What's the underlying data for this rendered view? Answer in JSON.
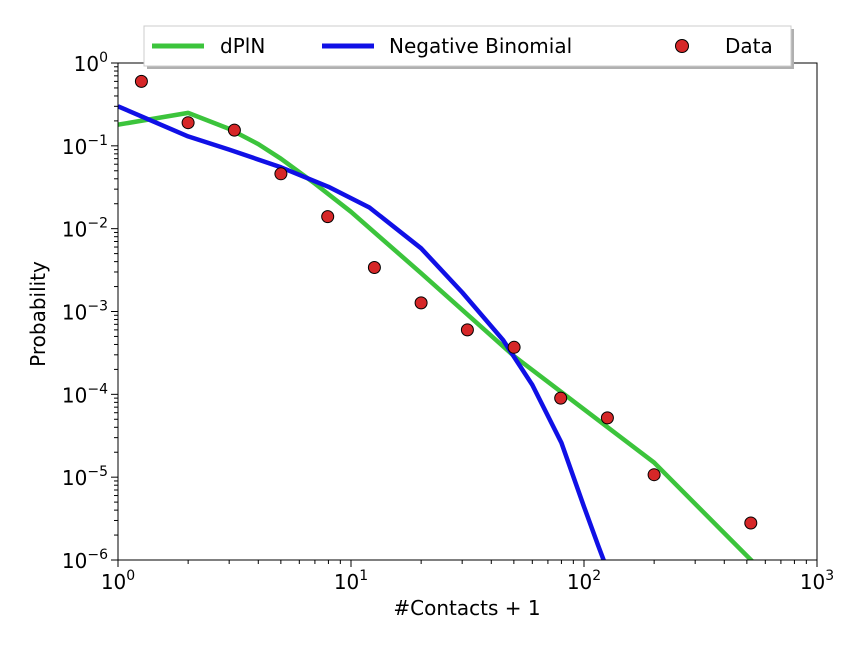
{
  "chart_data": {
    "type": "line",
    "xlabel": "#Contacts + 1",
    "ylabel": "Probability",
    "xscale": "log",
    "yscale": "log",
    "xlim": [
      1,
      1000
    ],
    "ylim": [
      1e-06,
      1
    ],
    "grid": false,
    "legend_position": "top",
    "x_ticks": [
      {
        "base": "10",
        "exp": "0",
        "value": 1
      },
      {
        "base": "10",
        "exp": "1",
        "value": 10
      },
      {
        "base": "10",
        "exp": "2",
        "value": 100
      },
      {
        "base": "10",
        "exp": "3",
        "value": 1000
      }
    ],
    "y_ticks": [
      {
        "base": "10",
        "exp": "0",
        "value": 1
      },
      {
        "base": "10",
        "exp": "−1",
        "value": 0.1
      },
      {
        "base": "10",
        "exp": "−2",
        "value": 0.01
      },
      {
        "base": "10",
        "exp": "−3",
        "value": 0.001
      },
      {
        "base": "10",
        "exp": "−4",
        "value": 0.0001
      },
      {
        "base": "10",
        "exp": "−5",
        "value": 1e-05
      },
      {
        "base": "10",
        "exp": "−6",
        "value": 1e-06
      }
    ],
    "series": [
      {
        "name": "dPlN",
        "kind": "line",
        "color": "#3cc43c",
        "x": [
          1,
          2,
          3,
          4,
          5,
          7,
          10,
          20,
          50,
          100,
          200,
          530
        ],
        "y": [
          0.18,
          0.25,
          0.16,
          0.105,
          0.07,
          0.035,
          0.016,
          0.0029,
          0.00029,
          6.6e-05,
          1.5e-05,
          9.5e-07
        ]
      },
      {
        "name": "Negative Binomial",
        "kind": "line",
        "color": "#1010e6",
        "x": [
          1,
          2,
          3,
          5,
          8,
          12,
          20,
          30,
          45,
          60,
          80,
          100,
          115,
          124
        ],
        "y": [
          0.3,
          0.13,
          0.09,
          0.055,
          0.032,
          0.018,
          0.0058,
          0.0017,
          0.00045,
          0.00013,
          2.6e-05,
          4.4e-06,
          1.5e-06,
          8.5e-07
        ]
      },
      {
        "name": "Data",
        "kind": "scatter",
        "color": "#d62728",
        "x": [
          1.26,
          2,
          3.16,
          5,
          7.94,
          12.6,
          20,
          31.6,
          50.1,
          79.4,
          126,
          200,
          520
        ],
        "y": [
          0.6,
          0.19,
          0.155,
          0.046,
          0.014,
          0.0034,
          0.00127,
          0.0006,
          0.00037,
          9e-05,
          5.2e-05,
          1.07e-05,
          2.8e-06
        ]
      }
    ]
  }
}
